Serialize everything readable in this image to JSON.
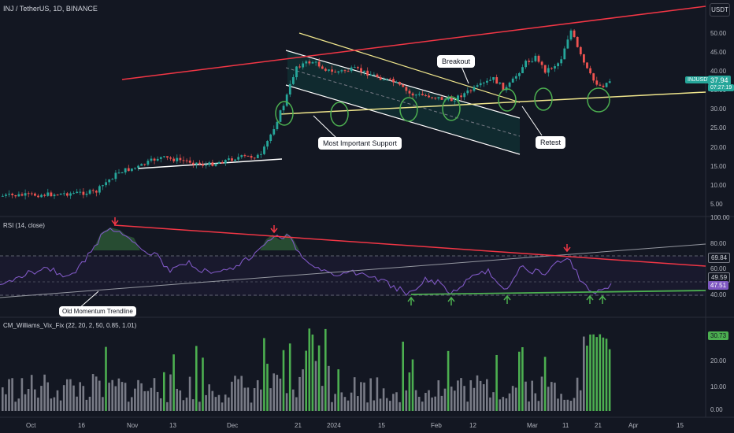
{
  "header": {
    "symbol_title": "INJ / TetherUS, 1D, BINANCE",
    "currency": "USDT"
  },
  "price_pane": {
    "y_ticks": [
      "50.00",
      "45.00",
      "40.00",
      "35.00",
      "30.00",
      "25.00",
      "20.00",
      "15.00",
      "10.00",
      "5.00"
    ],
    "ticker_label": "INJUSDT",
    "last_price": "37.94",
    "countdown": "07:27:19",
    "annotations": {
      "breakout": "Breakout",
      "support": "Most Important Support",
      "retest": "Retest"
    }
  },
  "rsi_pane": {
    "title": "RSI (14, close)",
    "y_ticks": [
      "100.00",
      "80.00",
      "60.00",
      "40.00"
    ],
    "value_a": "69.84",
    "value_b": "49.59",
    "value_c": "47.51",
    "annotation": "Old Momentum Trendline"
  },
  "vix_pane": {
    "title": "CM_Williams_Vix_Fix (22, 20, 2, 50, 0.85, 1.01)",
    "y_ticks": [
      "20.00",
      "10.00",
      "0.00"
    ],
    "last_value": "30.73"
  },
  "time_axis": {
    "labels": [
      "Oct",
      "16",
      "Nov",
      "13",
      "Dec",
      "21",
      "2024",
      "15",
      "Feb",
      "12",
      "Mar",
      "11",
      "21",
      "Apr",
      "15"
    ]
  },
  "colors": {
    "background": "#131722",
    "up": "#26a69a",
    "down": "#ef5350",
    "resistance_line": "#f23645",
    "support_line": "#f0e68c",
    "channel_fill": "#0f3b3b",
    "rsi_line": "#7e57c2",
    "green_marker": "#4caf50",
    "vix_gray": "#787b86",
    "vix_green": "#4caf50"
  }
}
